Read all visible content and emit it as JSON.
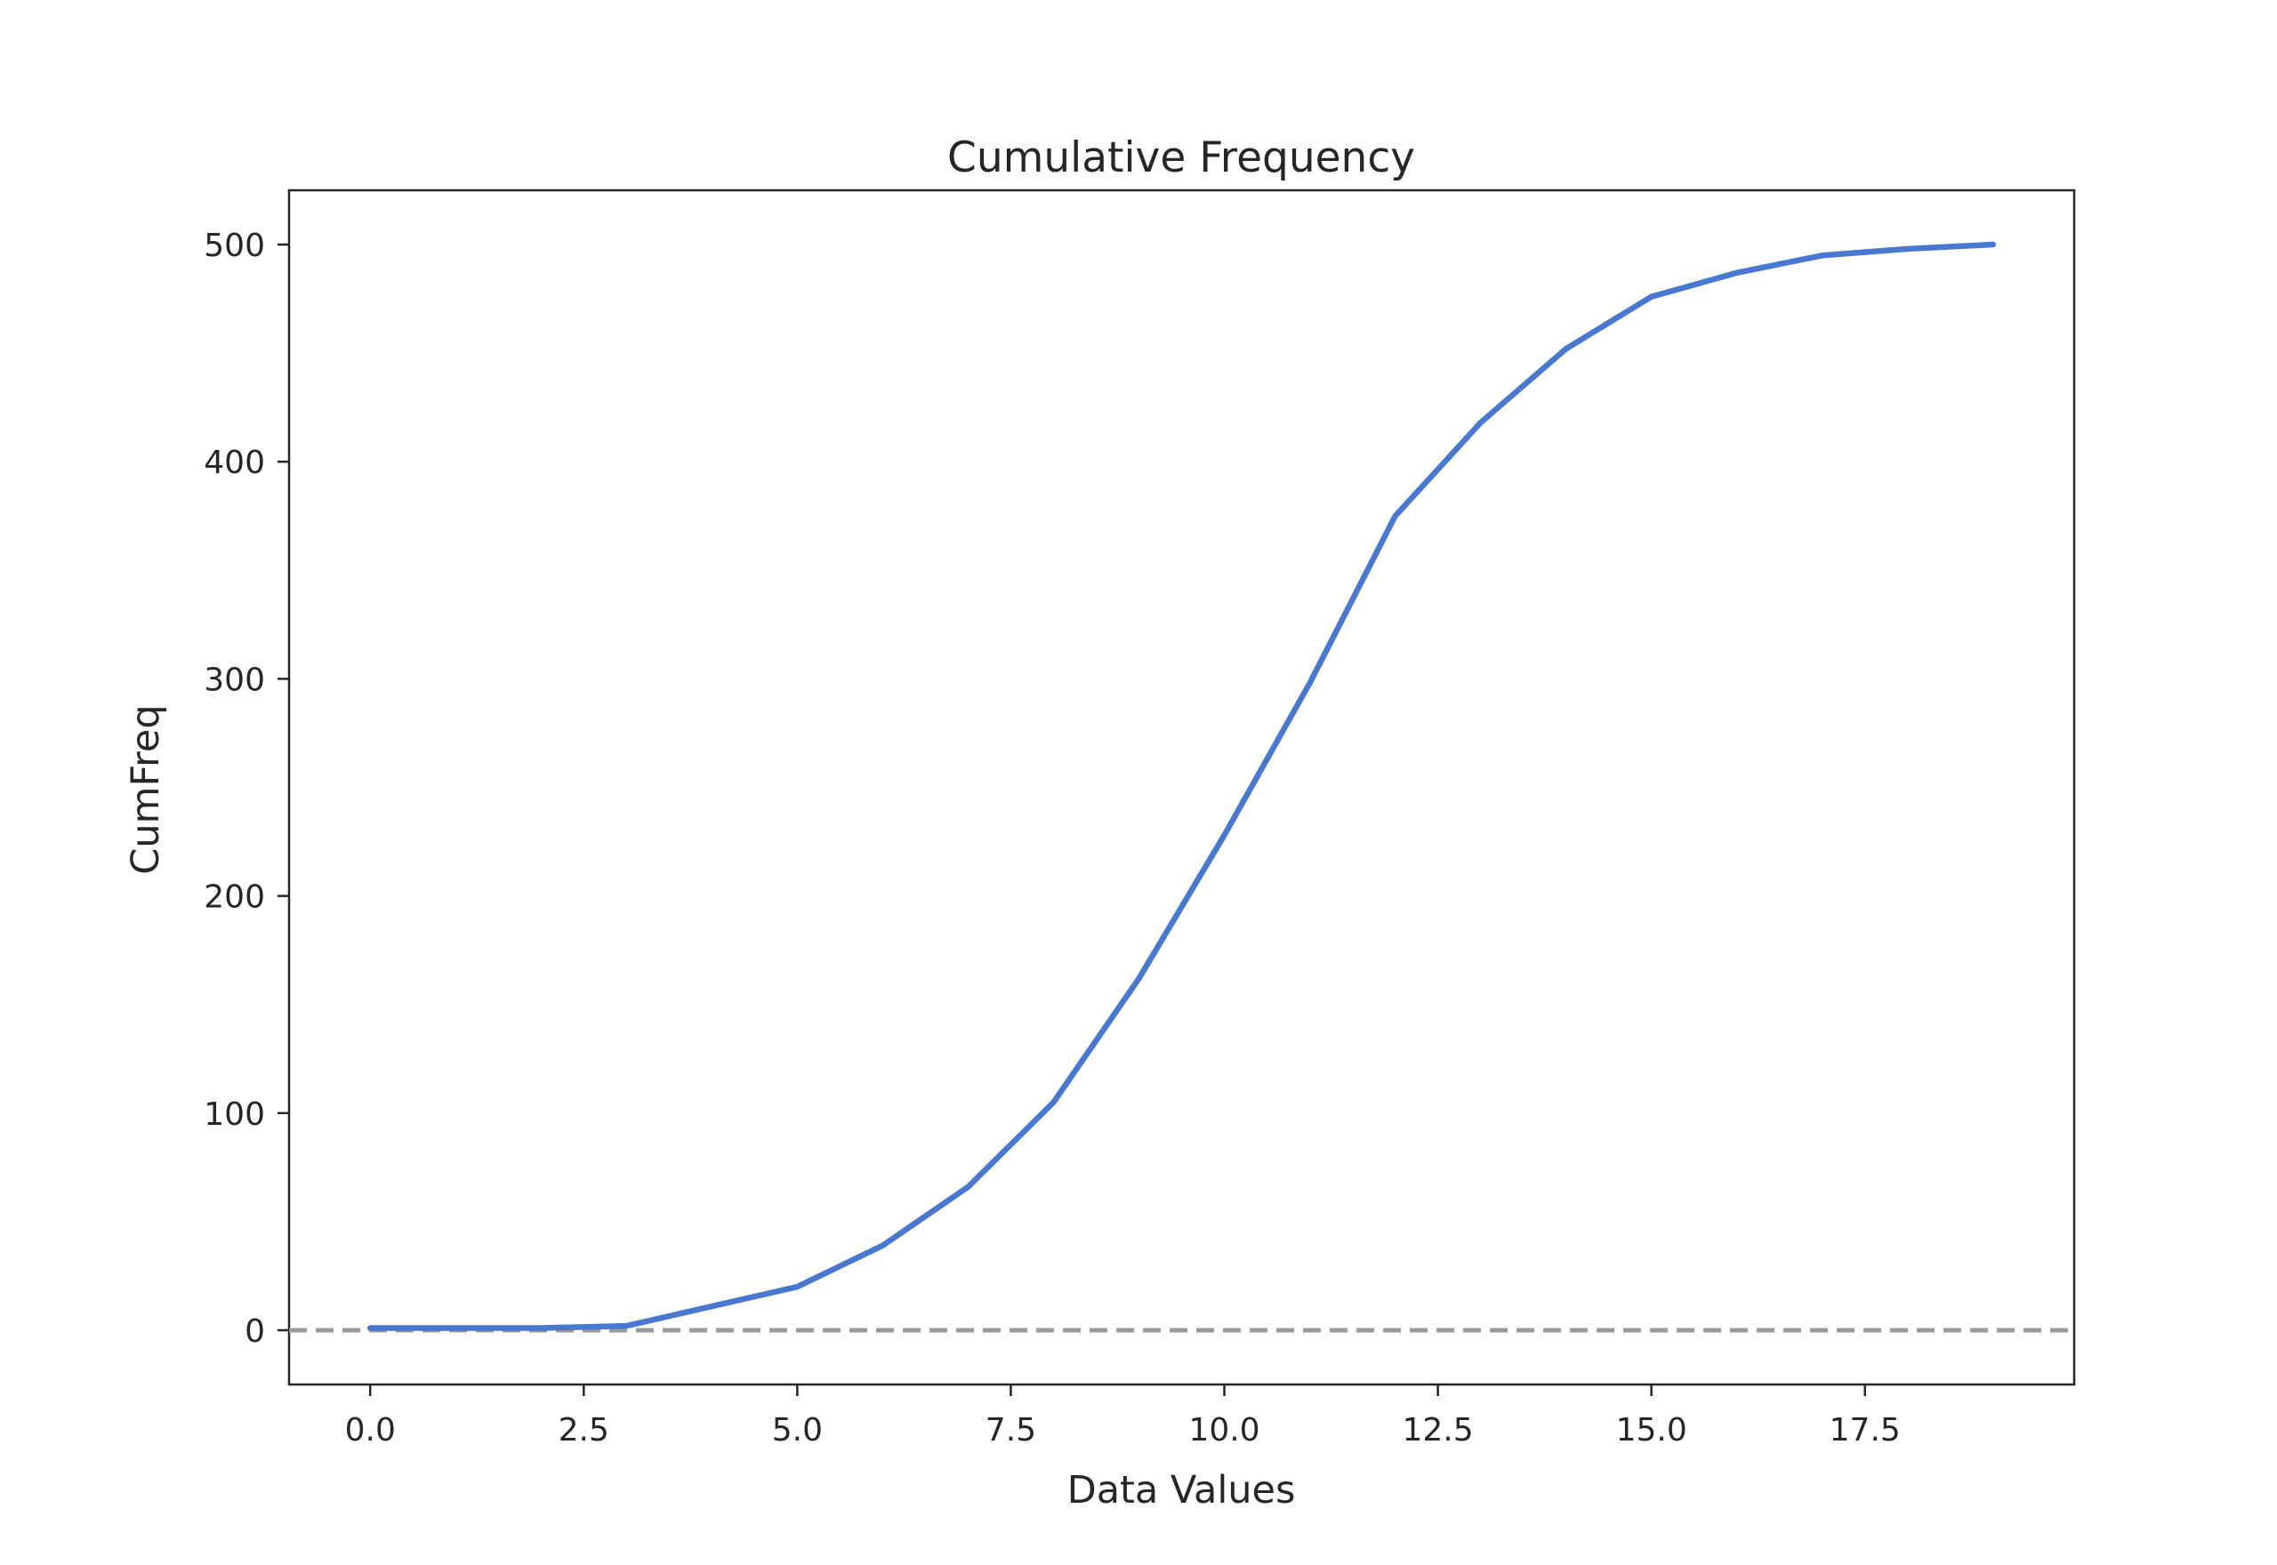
{
  "chart_data": {
    "type": "line",
    "title": "Cumulative Frequency",
    "xlabel": "Data Values",
    "ylabel": "CumFreq",
    "xlim": [
      -0.95,
      19.95
    ],
    "ylim": [
      -25,
      525
    ],
    "xticks": [
      0.0,
      2.5,
      5.0,
      7.5,
      10.0,
      12.5,
      15.0,
      17.5
    ],
    "xtick_labels": [
      "0.0",
      "2.5",
      "5.0",
      "7.5",
      "10.0",
      "12.5",
      "15.0",
      "17.5"
    ],
    "yticks": [
      0,
      100,
      200,
      300,
      400,
      500
    ],
    "ytick_labels": [
      "0",
      "100",
      "200",
      "300",
      "400",
      "500"
    ],
    "grid": false,
    "series": [
      {
        "color": "#4878cf",
        "x": [
          0,
          1,
          2,
          3,
          4,
          5,
          6,
          7,
          8,
          9,
          10,
          11,
          12,
          13,
          14,
          15,
          16,
          17,
          18,
          19
        ],
        "values": [
          1,
          1,
          1,
          2,
          11,
          20,
          39,
          66,
          105,
          162,
          228,
          298,
          375,
          418,
          452,
          476,
          487,
          495,
          498,
          500
        ]
      }
    ],
    "reference_line": {
      "y": 0,
      "style": "dashed",
      "color": "#999999"
    },
    "colors": {
      "axes": "#262626",
      "text": "#262626",
      "background": "#ffffff"
    }
  }
}
